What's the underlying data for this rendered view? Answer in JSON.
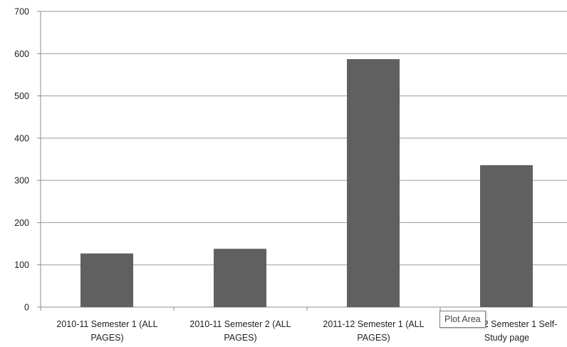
{
  "chart_data": {
    "type": "bar",
    "title": "",
    "xlabel": "",
    "ylabel": "",
    "categories": [
      [
        "2010-11 Semester 1 (ALL",
        "PAGES)"
      ],
      [
        "2010-11 Semester 2 (ALL",
        "PAGES)"
      ],
      [
        "2011-12 Semester 1 (ALL",
        "PAGES)"
      ],
      [
        "2011-12 Semester 1 Self-",
        "Study page"
      ]
    ],
    "values": [
      127,
      138,
      587,
      336
    ],
    "ylim": [
      0,
      700
    ],
    "yticks": [
      0,
      100,
      200,
      300,
      400,
      500,
      600,
      700
    ],
    "grid": true,
    "legend": "none",
    "bar_color": "#5f605f"
  },
  "tooltip": {
    "text": "Plot Area"
  }
}
